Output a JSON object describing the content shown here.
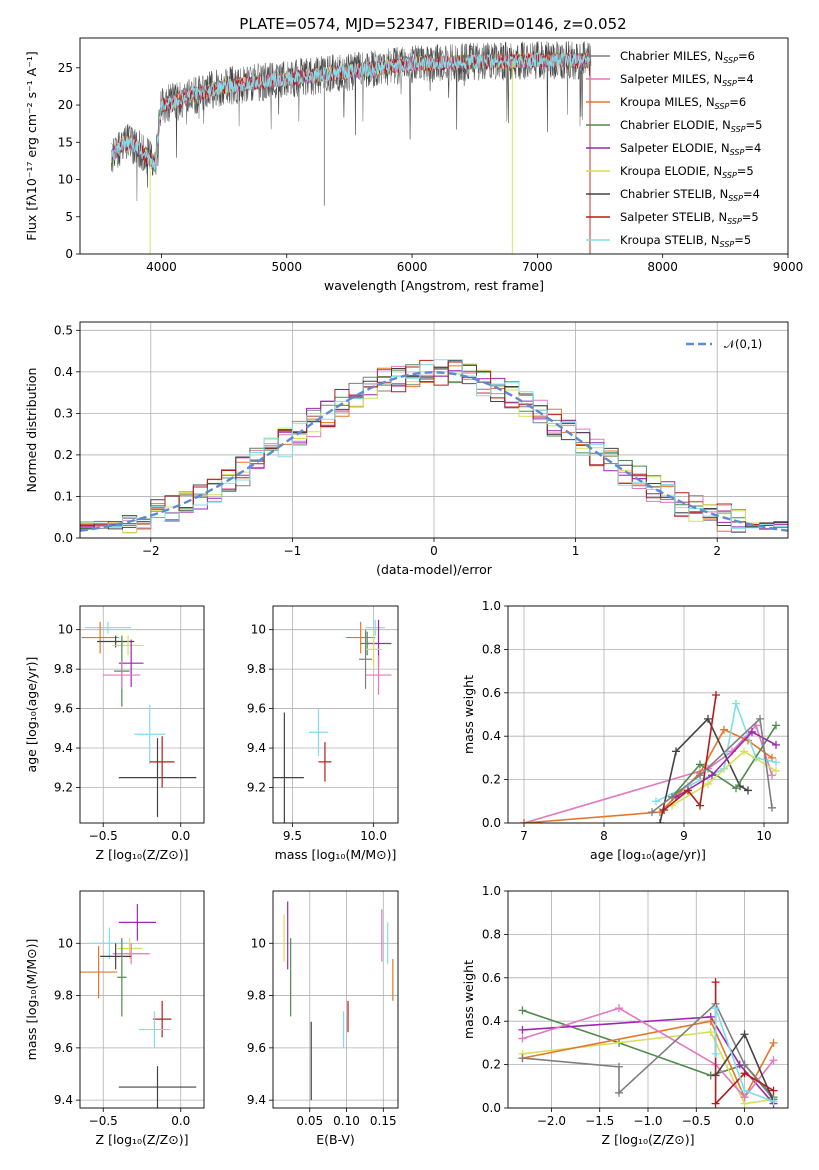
{
  "title": "PLATE=0574, MJD=52347, FIBERID=0146, z=0.052",
  "models": [
    {
      "name": "Chabrier MILES",
      "nssp": "6",
      "color": "#7f7f7f"
    },
    {
      "name": "Salpeter MILES",
      "nssp": "4",
      "color": "#e377c2"
    },
    {
      "name": "Kroupa MILES",
      "nssp": "6",
      "color": "#e6772a"
    },
    {
      "name": "Chabrier ELODIE",
      "nssp": "5",
      "color": "#4d8a4d"
    },
    {
      "name": "Salpeter ELODIE",
      "nssp": "4",
      "color": "#9c27b0"
    },
    {
      "name": "Kroupa ELODIE",
      "nssp": "5",
      "color": "#d4e157"
    },
    {
      "name": "Chabrier STELIB",
      "nssp": "4",
      "color": "#444444"
    },
    {
      "name": "Salpeter STELIB",
      "nssp": "5",
      "color": "#b71c1c"
    },
    {
      "name": "Kroupa STELIB",
      "nssp": "5",
      "color": "#80deea"
    }
  ],
  "chart_data": [
    {
      "type": "line",
      "panel": "spectrum",
      "xlabel": "wavelength [Angstrom, rest frame]",
      "ylabel": "Flux [fλ10⁻¹⁷ erg cm⁻² s⁻¹ A⁻¹]",
      "xlim": [
        3350,
        9000
      ],
      "ylim": [
        0,
        29
      ],
      "xticks": [
        4000,
        5000,
        6000,
        7000,
        8000,
        9000
      ],
      "yticks": [
        0,
        5,
        10,
        15,
        20,
        25
      ],
      "grid": false,
      "legend": "right",
      "continuum_x": [
        3600,
        3700,
        3800,
        3950,
        4000,
        4200,
        4500,
        5000,
        5500,
        6000,
        6500,
        7000,
        7400
      ],
      "continuum_y": [
        13,
        15,
        14.5,
        12,
        20,
        21,
        22.5,
        23.5,
        24.5,
        25.5,
        25.8,
        26,
        26
      ]
    },
    {
      "type": "line",
      "panel": "residual_histogram",
      "xlabel": "(data-model)/error",
      "ylabel": "Normed distribution",
      "xlim": [
        -2.5,
        2.5
      ],
      "ylim": [
        0,
        0.52
      ],
      "xticks": [
        -2,
        -1,
        0,
        1,
        2
      ],
      "yticks": [
        0.0,
        0.1,
        0.2,
        0.3,
        0.4,
        0.5
      ],
      "grid": true,
      "legend": "top-right",
      "reference_label": "𝒩(0,1)",
      "reference_color": "#5b8bd6"
    },
    {
      "type": "scatter",
      "panel": "age_vs_Z",
      "xlabel": "Z [log₁₀(Z/Z⊙)]",
      "ylabel": "age  [log₁₀(age/yr)]",
      "xlim": [
        -0.65,
        0.15
      ],
      "ylim": [
        9.02,
        10.12
      ],
      "xticks": [
        -0.5,
        0.0
      ],
      "xticklabels": [
        "−0.5",
        "0.0"
      ],
      "yticks": [
        9.2,
        9.4,
        9.6,
        9.8,
        10.0
      ],
      "grid": true,
      "points": [
        {
          "series": "Kroupa STELIB",
          "x": -0.47,
          "y": 10.01,
          "xerr": 0.15,
          "yerr": 0.03
        },
        {
          "series": "Kroupa MILES",
          "x": -0.52,
          "y": 9.96,
          "xerr": 0.12,
          "yerr": 0.08
        },
        {
          "series": "Chabrier STELIB",
          "x": -0.42,
          "y": 9.94,
          "xerr": 0.12,
          "yerr": 0.03
        },
        {
          "series": "Kroupa ELODIE",
          "x": -0.34,
          "y": 9.92,
          "xerr": 0.1,
          "yerr": 0.05
        },
        {
          "series": "Chabrier ELODIE",
          "x": -0.38,
          "y": 9.79,
          "xerr": 0.05,
          "yerr": 0.18
        },
        {
          "series": "Salpeter ELODIE",
          "x": -0.32,
          "y": 9.83,
          "xerr": 0.08,
          "yerr": 0.12
        },
        {
          "series": "Salpeter MILES",
          "x": -0.38,
          "y": 9.77,
          "xerr": 0.12,
          "yerr": 0.07
        },
        {
          "series": "Kroupa STELIB",
          "x": -0.2,
          "y": 9.47,
          "xerr": 0.1,
          "yerr": 0.15
        },
        {
          "series": "Salpeter STELIB",
          "x": -0.12,
          "y": 9.33,
          "xerr": 0.08,
          "yerr": 0.13
        },
        {
          "series": "Chabrier STELIB",
          "x": -0.15,
          "y": 9.25,
          "xerr": 0.25,
          "yerr": 0.2
        }
      ]
    },
    {
      "type": "scatter",
      "panel": "age_vs_mass",
      "xlabel": "mass [log₁₀(M/M⊙)]",
      "ylabel": "",
      "xlim": [
        9.38,
        10.15
      ],
      "ylim": [
        9.02,
        10.12
      ],
      "xticks": [
        9.5,
        10.0
      ],
      "xticklabels": [
        "9.5",
        "10.0"
      ],
      "yticks": [
        9.2,
        9.4,
        9.6,
        9.8,
        10.0
      ],
      "grid": true,
      "points": [
        {
          "series": "Kroupa STELIB",
          "x": 10.01,
          "y": 10.01,
          "xerr": 0.06,
          "yerr": 0.04
        },
        {
          "series": "Kroupa MILES",
          "x": 9.92,
          "y": 9.96,
          "xerr": 0.09,
          "yerr": 0.08
        },
        {
          "series": "Salpeter ELODIE",
          "x": 10.03,
          "y": 9.93,
          "xerr": 0.08,
          "yerr": 0.12
        },
        {
          "series": "Chabrier ELODIE",
          "x": 9.96,
          "y": 9.93,
          "xerr": 0.04,
          "yerr": 0.06
        },
        {
          "series": "Kroupa ELODIE",
          "x": 10.0,
          "y": 9.9,
          "xerr": 0.05,
          "yerr": 0.1
        },
        {
          "series": "Chabrier MILES",
          "x": 9.95,
          "y": 9.85,
          "xerr": 0.04,
          "yerr": 0.15
        },
        {
          "series": "Salpeter MILES",
          "x": 10.03,
          "y": 9.77,
          "xerr": 0.08,
          "yerr": 0.1
        },
        {
          "series": "Kroupa STELIB",
          "x": 9.66,
          "y": 9.48,
          "xerr": 0.06,
          "yerr": 0.12
        },
        {
          "series": "Salpeter STELIB",
          "x": 9.7,
          "y": 9.33,
          "xerr": 0.04,
          "yerr": 0.1
        },
        {
          "series": "Chabrier STELIB",
          "x": 9.45,
          "y": 9.25,
          "xerr": 0.12,
          "yerr": 0.33
        }
      ]
    },
    {
      "type": "line",
      "panel": "mass_weight_vs_age",
      "xlabel": "age  [log₁₀(age/yr)]",
      "ylabel": "mass weight",
      "xlim": [
        6.8,
        10.3
      ],
      "ylim": [
        0,
        1
      ],
      "xticks": [
        7,
        8,
        9,
        10
      ],
      "yticks": [
        0.0,
        0.2,
        0.4,
        0.6,
        0.8,
        1.0
      ],
      "grid": true,
      "series": [
        {
          "name": "Salpeter MILES",
          "x": [
            7.0,
            9.3,
            9.6,
            9.9,
            10.1
          ],
          "y": [
            0.0,
            0.25,
            0.33,
            0.45,
            0.22
          ]
        },
        {
          "name": "Kroupa MILES",
          "x": [
            7.0,
            8.7,
            9.2,
            9.5,
            9.8,
            10.1
          ],
          "y": [
            0.0,
            0.05,
            0.23,
            0.43,
            0.38,
            0.3
          ]
        },
        {
          "name": "Kroupa STELIB",
          "x": [
            8.65,
            9.05,
            9.5,
            9.65,
            9.9,
            10.15
          ],
          "y": [
            0.1,
            0.17,
            0.25,
            0.55,
            0.3,
            0.28
          ]
        },
        {
          "name": "Chabrier STELIB",
          "x": [
            8.7,
            8.9,
            9.3,
            9.7,
            9.8
          ],
          "y": [
            0.0,
            0.33,
            0.48,
            0.17,
            0.15
          ]
        },
        {
          "name": "Chabrier ELODIE",
          "x": [
            8.85,
            9.2,
            9.65,
            10.15
          ],
          "y": [
            0.12,
            0.27,
            0.16,
            0.45
          ]
        },
        {
          "name": "Salpeter ELODIE",
          "x": [
            8.9,
            9.35,
            9.85,
            10.15
          ],
          "y": [
            0.12,
            0.22,
            0.42,
            0.36
          ]
        },
        {
          "name": "Kroupa ELODIE",
          "x": [
            8.85,
            9.3,
            9.75,
            10.15
          ],
          "y": [
            0.08,
            0.18,
            0.33,
            0.24
          ]
        },
        {
          "name": "Salpeter STELIB",
          "x": [
            8.75,
            9.05,
            9.2,
            9.4
          ],
          "y": [
            0.06,
            0.15,
            0.08,
            0.59
          ]
        },
        {
          "name": "Chabrier MILES",
          "x": [
            8.6,
            9.2,
            9.95,
            10.1
          ],
          "y": [
            0.05,
            0.22,
            0.48,
            0.07
          ]
        }
      ]
    },
    {
      "type": "scatter",
      "panel": "mass_vs_Z",
      "xlabel": "Z [log₁₀(Z/Z⊙)]",
      "ylabel": "mass [log₁₀(M/M⊙)]",
      "xlim": [
        -0.65,
        0.15
      ],
      "ylim": [
        9.37,
        10.2
      ],
      "xticks": [
        -0.5,
        0.0
      ],
      "xticklabels": [
        "−0.5",
        "0.0"
      ],
      "yticks": [
        9.4,
        9.6,
        9.8,
        10.0
      ],
      "grid": true,
      "points": [
        {
          "series": "Salpeter ELODIE",
          "x": -0.28,
          "y": 10.08,
          "xerr": 0.12,
          "yerr": 0.07
        },
        {
          "series": "Kroupa STELIB",
          "x": -0.46,
          "y": 10.0,
          "xerr": 0.12,
          "yerr": 0.06
        },
        {
          "series": "Kroupa ELODIE",
          "x": -0.33,
          "y": 9.98,
          "xerr": 0.08,
          "yerr": 0.04
        },
        {
          "series": "Salpeter MILES",
          "x": -0.32,
          "y": 9.96,
          "xerr": 0.12,
          "yerr": 0.04
        },
        {
          "series": "Chabrier STELIB",
          "x": -0.42,
          "y": 9.95,
          "xerr": 0.1,
          "yerr": 0.05
        },
        {
          "series": "Chabrier ELODIE",
          "x": -0.38,
          "y": 9.87,
          "xerr": 0.03,
          "yerr": 0.15
        },
        {
          "series": "Kroupa MILES",
          "x": -0.53,
          "y": 9.89,
          "xerr": 0.12,
          "yerr": 0.1
        },
        {
          "series": "Salpeter STELIB",
          "x": -0.12,
          "y": 9.71,
          "xerr": 0.06,
          "yerr": 0.07
        },
        {
          "series": "Kroupa STELIB",
          "x": -0.17,
          "y": 9.67,
          "xerr": 0.1,
          "yerr": 0.07
        },
        {
          "series": "Chabrier STELIB",
          "x": -0.15,
          "y": 9.45,
          "xerr": 0.25,
          "yerr": 0.08
        }
      ]
    },
    {
      "type": "scatter",
      "panel": "mass_vs_EBV",
      "xlabel": "E(B-V)",
      "ylabel": "",
      "xlim": [
        0.0,
        0.17
      ],
      "ylim": [
        9.37,
        10.2
      ],
      "xticks": [
        0.05,
        0.1,
        0.15
      ],
      "xticklabels": [
        "0.05",
        "0.10",
        "0.15"
      ],
      "yticks": [
        9.4,
        9.6,
        9.8,
        10.0
      ],
      "grid": true,
      "points": [
        {
          "series": "Kroupa ELODIE",
          "x": 0.015,
          "y": 10.02,
          "yerr": 0.09
        },
        {
          "series": "Salpeter ELODIE",
          "x": 0.02,
          "y": 10.03,
          "yerr": 0.13
        },
        {
          "series": "Chabrier ELODIE",
          "x": 0.024,
          "y": 9.87,
          "yerr": 0.15
        },
        {
          "series": "Chabrier STELIB",
          "x": 0.052,
          "y": 9.55,
          "yerr": 0.15
        },
        {
          "series": "Kroupa STELIB",
          "x": 0.096,
          "y": 9.67,
          "yerr": 0.07
        },
        {
          "series": "Salpeter STELIB",
          "x": 0.102,
          "y": 9.72,
          "yerr": 0.06
        },
        {
          "series": "Salpeter MILES",
          "x": 0.148,
          "y": 10.03,
          "yerr": 0.1
        },
        {
          "series": "Kroupa STELIB",
          "x": 0.156,
          "y": 10.0,
          "yerr": 0.08
        },
        {
          "series": "Kroupa MILES",
          "x": 0.163,
          "y": 9.86,
          "yerr": 0.08
        }
      ]
    },
    {
      "type": "line",
      "panel": "mass_weight_vs_Z",
      "xlabel": "Z [log₁₀(Z/Z⊙)]",
      "ylabel": "mass weight",
      "xlim": [
        -2.45,
        0.45
      ],
      "ylim": [
        0,
        1
      ],
      "xticks": [
        -2.0,
        -1.5,
        -1.0,
        -0.5,
        0.0
      ],
      "xticklabels": [
        "−2.0",
        "−1.5",
        "−1.0",
        "−0.5",
        "0.0"
      ],
      "yticks": [
        0.0,
        0.2,
        0.4,
        0.6,
        0.8,
        1.0
      ],
      "grid": true,
      "series": [
        {
          "name": "Chabrier ELODIE",
          "x": [
            -2.3,
            -1.3,
            -0.35,
            0.0,
            0.3
          ],
          "y": [
            0.45,
            0.3,
            0.15,
            0.2,
            0.05
          ]
        },
        {
          "name": "Salpeter ELODIE",
          "x": [
            -2.3,
            -0.35,
            -0.05,
            0.3
          ],
          "y": [
            0.36,
            0.42,
            0.2,
            0.02
          ]
        },
        {
          "name": "Kroupa ELODIE",
          "x": [
            -2.3,
            -0.35,
            0.0,
            0.3
          ],
          "y": [
            0.25,
            0.35,
            0.02,
            0.04
          ]
        },
        {
          "name": "Kroupa MILES",
          "x": [
            -2.3,
            -0.35,
            0.0,
            0.3
          ],
          "y": [
            0.23,
            0.4,
            0.05,
            0.3
          ]
        },
        {
          "name": "Salpeter MILES",
          "x": [
            -2.3,
            -1.3,
            -0.3,
            0.0,
            0.3
          ],
          "y": [
            0.32,
            0.46,
            0.2,
            0.05,
            0.22
          ]
        },
        {
          "name": "Chabrier MILES",
          "x": [
            -2.3,
            -1.3,
            -1.3,
            -0.3,
            0.0,
            0.3
          ],
          "y": [
            0.23,
            0.19,
            0.07,
            0.48,
            0.2,
            0.04
          ]
        },
        {
          "name": "Chabrier STELIB",
          "x": [
            -0.3,
            0.0,
            0.3
          ],
          "y": [
            0.15,
            0.34,
            0.03
          ]
        },
        {
          "name": "Salpeter STELIB",
          "x": [
            -0.3,
            -0.3,
            0.0,
            0.3
          ],
          "y": [
            0.58,
            0.02,
            0.16,
            0.08
          ]
        },
        {
          "name": "Kroupa STELIB",
          "x": [
            -0.3,
            -0.3,
            0.0,
            0.3
          ],
          "y": [
            0.25,
            0.46,
            0.08,
            0.03
          ]
        }
      ]
    }
  ]
}
